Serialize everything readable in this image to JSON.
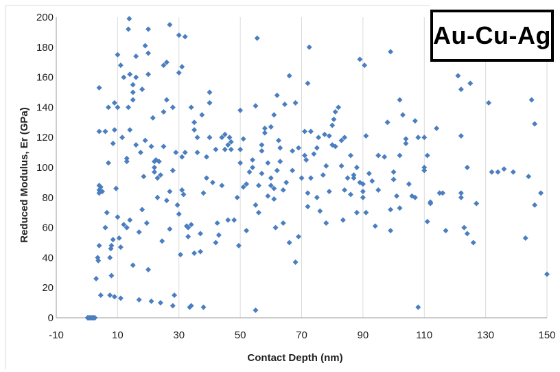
{
  "chart_data": {
    "type": "scatter",
    "title": "",
    "xlabel": "Contact Depth (nm)",
    "ylabel": "Reduced Modulus, Er (GPa)",
    "xlim": [
      -10,
      150
    ],
    "ylim": [
      0,
      200
    ],
    "x_ticks": [
      -10,
      10,
      30,
      50,
      70,
      90,
      110,
      130,
      150
    ],
    "y_ticks": [
      0,
      20,
      40,
      60,
      80,
      100,
      120,
      140,
      160,
      180,
      200
    ],
    "grid": "vertical",
    "legend_text": "Au-Cu-Ag",
    "legend_position": "top-right",
    "marker_color": "#4a7ebf",
    "series": [
      {
        "points": [
          [
            0.5,
            0
          ],
          [
            0.8,
            0
          ],
          [
            1.1,
            0
          ],
          [
            1.4,
            0
          ],
          [
            1.7,
            0
          ],
          [
            2.0,
            0
          ],
          [
            2.3,
            0
          ],
          [
            0.2,
            0
          ],
          [
            2.6,
            0
          ],
          [
            3,
            26
          ],
          [
            3.5,
            40
          ],
          [
            3.7,
            38
          ],
          [
            4,
            48
          ],
          [
            4,
            83
          ],
          [
            4,
            85
          ],
          [
            4,
            88
          ],
          [
            4,
            124
          ],
          [
            4,
            153
          ],
          [
            4.5,
            15
          ],
          [
            4.5,
            87
          ],
          [
            5,
            84
          ],
          [
            6,
            60
          ],
          [
            6,
            124
          ],
          [
            6.5,
            70
          ],
          [
            7,
            103
          ],
          [
            7,
            140
          ],
          [
            7.5,
            40
          ],
          [
            7.5,
            15
          ],
          [
            7.8,
            46
          ],
          [
            8,
            48
          ],
          [
            8,
            28
          ],
          [
            8.5,
            116
          ],
          [
            8.5,
            52
          ],
          [
            9,
            143
          ],
          [
            9,
            125
          ],
          [
            9,
            14
          ],
          [
            9.5,
            86
          ],
          [
            10,
            67
          ],
          [
            10,
            175
          ],
          [
            10,
            140
          ],
          [
            10.5,
            53
          ],
          [
            11,
            13
          ],
          [
            11,
            47
          ],
          [
            11,
            168
          ],
          [
            11.5,
            120
          ],
          [
            12,
            160
          ],
          [
            12,
            62
          ],
          [
            13,
            106
          ],
          [
            13,
            60
          ],
          [
            13,
            104
          ],
          [
            13.5,
            140
          ],
          [
            13.5,
            192
          ],
          [
            13.8,
            199
          ],
          [
            14,
            162
          ],
          [
            14,
            125
          ],
          [
            14,
            65
          ],
          [
            15,
            145
          ],
          [
            15,
            150
          ],
          [
            15,
            35
          ],
          [
            15,
            155
          ],
          [
            16,
            115
          ],
          [
            16,
            174
          ],
          [
            16,
            160
          ],
          [
            17,
            12
          ],
          [
            17,
            57
          ],
          [
            17.5,
            110
          ],
          [
            18,
            152
          ],
          [
            18,
            72
          ],
          [
            18.5,
            94
          ],
          [
            19,
            118
          ],
          [
            19,
            181
          ],
          [
            19.5,
            63
          ],
          [
            20,
            32
          ],
          [
            20,
            192
          ],
          [
            20,
            162
          ],
          [
            20,
            176
          ],
          [
            21,
            114
          ],
          [
            21,
            11
          ],
          [
            21.5,
            133
          ],
          [
            22,
            104
          ],
          [
            22,
            100
          ],
          [
            22,
            97
          ],
          [
            22.5,
            105
          ],
          [
            23,
            80
          ],
          [
            23,
            93
          ],
          [
            23.5,
            104
          ],
          [
            24,
            10
          ],
          [
            24,
            95
          ],
          [
            24.5,
            51
          ],
          [
            25,
            168
          ],
          [
            25,
            114
          ],
          [
            25,
            137
          ],
          [
            26,
            170
          ],
          [
            26,
            145
          ],
          [
            26,
            78
          ],
          [
            27,
            195
          ],
          [
            27,
            59
          ],
          [
            27,
            84
          ],
          [
            28,
            140
          ],
          [
            28,
            98
          ],
          [
            28,
            8
          ],
          [
            28.5,
            15
          ],
          [
            29,
            110
          ],
          [
            29.5,
            75
          ],
          [
            30,
            69
          ],
          [
            30,
            188
          ],
          [
            30,
            163
          ],
          [
            30.5,
            42
          ],
          [
            31,
            107
          ],
          [
            31,
            85
          ],
          [
            31,
            167
          ],
          [
            31.5,
            82
          ],
          [
            32,
            110
          ],
          [
            32,
            187
          ],
          [
            32.5,
            61
          ],
          [
            33,
            54
          ],
          [
            33,
            60
          ],
          [
            33.5,
            7
          ],
          [
            34,
            140
          ],
          [
            34,
            8
          ],
          [
            34,
            62
          ],
          [
            35,
            43
          ],
          [
            35,
            130
          ],
          [
            35,
            125
          ],
          [
            36,
            120
          ],
          [
            36,
            110
          ],
          [
            37,
            56
          ],
          [
            37,
            44
          ],
          [
            37.5,
            135
          ],
          [
            38,
            83
          ],
          [
            38,
            7
          ],
          [
            39,
            93
          ],
          [
            39,
            107
          ],
          [
            40,
            143
          ],
          [
            40,
            150
          ],
          [
            40,
            120
          ],
          [
            41,
            90
          ],
          [
            42,
            50
          ],
          [
            42,
            112
          ],
          [
            42.5,
            63
          ],
          [
            43,
            55
          ],
          [
            44,
            120
          ],
          [
            44,
            88
          ],
          [
            45,
            122
          ],
          [
            45,
            112
          ],
          [
            46,
            115
          ],
          [
            46,
            65
          ],
          [
            46.5,
            120
          ],
          [
            47,
            117
          ],
          [
            47,
            112
          ],
          [
            48,
            65
          ],
          [
            49,
            80
          ],
          [
            49.5,
            48
          ],
          [
            50,
            112
          ],
          [
            50,
            103
          ],
          [
            50,
            138
          ],
          [
            51,
            119
          ],
          [
            51,
            87
          ],
          [
            52,
            58
          ],
          [
            52,
            89
          ],
          [
            53,
            97
          ],
          [
            54,
            100
          ],
          [
            54,
            105
          ],
          [
            55,
            5
          ],
          [
            55,
            141
          ],
          [
            55,
            75
          ],
          [
            55.5,
            186
          ],
          [
            56,
            88
          ],
          [
            56,
            70
          ],
          [
            57,
            111
          ],
          [
            57,
            96
          ],
          [
            57,
            115
          ],
          [
            58,
            123
          ],
          [
            58,
            126
          ],
          [
            59,
            81
          ],
          [
            59,
            103
          ],
          [
            60,
            127
          ],
          [
            60,
            93
          ],
          [
            60,
            88
          ],
          [
            61,
            79
          ],
          [
            61,
            86
          ],
          [
            61,
            135
          ],
          [
            61.5,
            60
          ],
          [
            62,
            148
          ],
          [
            62,
            98
          ],
          [
            62.5,
            118
          ],
          [
            63,
            113
          ],
          [
            63,
            104
          ],
          [
            64,
            63
          ],
          [
            64,
            85
          ],
          [
            64.5,
            142
          ],
          [
            65,
            90
          ],
          [
            66,
            161
          ],
          [
            66,
            50
          ],
          [
            67,
            111
          ],
          [
            67,
            98
          ],
          [
            68,
            37
          ],
          [
            68,
            143
          ],
          [
            69,
            113
          ],
          [
            69,
            54
          ],
          [
            70,
            93
          ],
          [
            71,
            124
          ],
          [
            71,
            108
          ],
          [
            71.5,
            105
          ],
          [
            72,
            83
          ],
          [
            72,
            156
          ],
          [
            72,
            74
          ],
          [
            72.5,
            180
          ],
          [
            73,
            124
          ],
          [
            73,
            93
          ],
          [
            74,
            109
          ],
          [
            75,
            113
          ],
          [
            75,
            80
          ],
          [
            75.5,
            120
          ],
          [
            76,
            71
          ],
          [
            77,
            95
          ],
          [
            77.5,
            122
          ],
          [
            78,
            63
          ],
          [
            78,
            101
          ],
          [
            79,
            121
          ],
          [
            79,
            84
          ],
          [
            80,
            128
          ],
          [
            80,
            115
          ],
          [
            80.5,
            132
          ],
          [
            81,
            137
          ],
          [
            81,
            114
          ],
          [
            82,
            140
          ],
          [
            83,
            118
          ],
          [
            83,
            101
          ],
          [
            83.5,
            65
          ],
          [
            84,
            85
          ],
          [
            84,
            120
          ],
          [
            85,
            93
          ],
          [
            86,
            108
          ],
          [
            86,
            82
          ],
          [
            87,
            95
          ],
          [
            87,
            93
          ],
          [
            88,
            70
          ],
          [
            88,
            100
          ],
          [
            89,
            172
          ],
          [
            89,
            90
          ],
          [
            90,
            84
          ],
          [
            90,
            80
          ],
          [
            90,
            89
          ],
          [
            90.5,
            168
          ],
          [
            91,
            70
          ],
          [
            91,
            121
          ],
          [
            92,
            96
          ],
          [
            93,
            91
          ],
          [
            94,
            61
          ],
          [
            95,
            108
          ],
          [
            95,
            85
          ],
          [
            97,
            107
          ],
          [
            98,
            130
          ],
          [
            99,
            72
          ],
          [
            99,
            177
          ],
          [
            99,
            58
          ],
          [
            100,
            97
          ],
          [
            100,
            92
          ],
          [
            101,
            81
          ],
          [
            102,
            108
          ],
          [
            102,
            73
          ],
          [
            102,
            145
          ],
          [
            103,
            135
          ],
          [
            104,
            119
          ],
          [
            104,
            116
          ],
          [
            105,
            89
          ],
          [
            106,
            81
          ],
          [
            107,
            131
          ],
          [
            107,
            80
          ],
          [
            108,
            7
          ],
          [
            108,
            120
          ],
          [
            110,
            120
          ],
          [
            110,
            100
          ],
          [
            110,
            98
          ],
          [
            111,
            64
          ],
          [
            111,
            108
          ],
          [
            112,
            77
          ],
          [
            112,
            76
          ],
          [
            114,
            126
          ],
          [
            115,
            83
          ],
          [
            116,
            83
          ],
          [
            117,
            58
          ],
          [
            121,
            161
          ],
          [
            122,
            83
          ],
          [
            122,
            80
          ],
          [
            122,
            121
          ],
          [
            122,
            152
          ],
          [
            123,
            60
          ],
          [
            124,
            56
          ],
          [
            124,
            100
          ],
          [
            125,
            156
          ],
          [
            126,
            50
          ],
          [
            127,
            76
          ],
          [
            131,
            143
          ],
          [
            132,
            97
          ],
          [
            134,
            97
          ],
          [
            136,
            99
          ],
          [
            139,
            97
          ],
          [
            143,
            53
          ],
          [
            144,
            94
          ],
          [
            145,
            145
          ],
          [
            146,
            129
          ],
          [
            146,
            75
          ],
          [
            148,
            83
          ],
          [
            150,
            29
          ]
        ]
      }
    ]
  }
}
